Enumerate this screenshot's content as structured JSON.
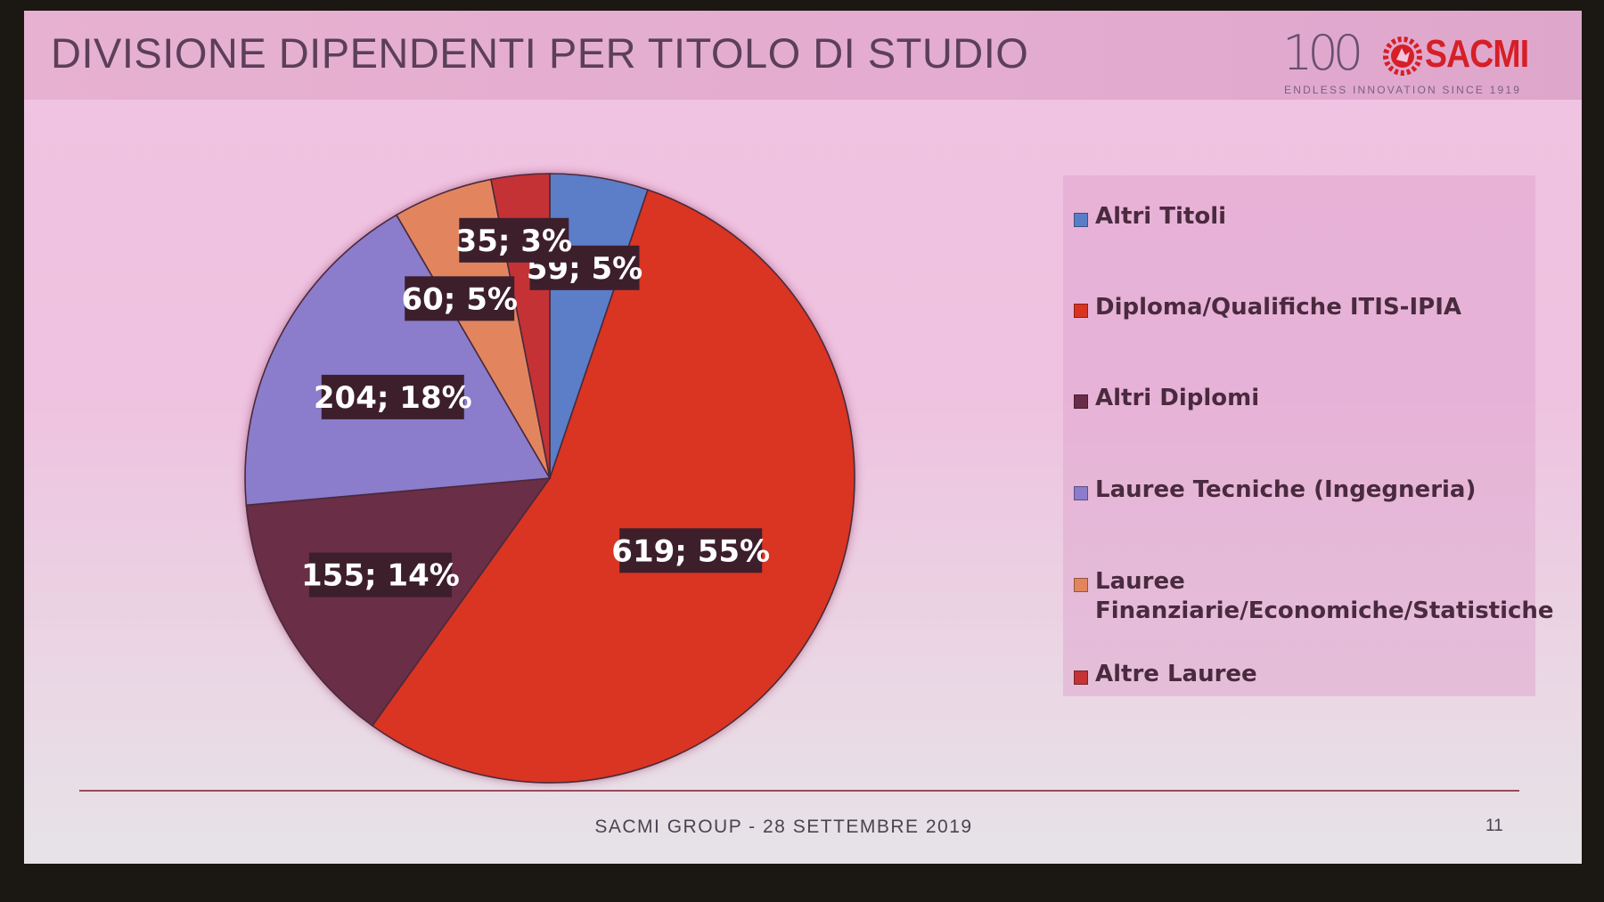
{
  "slide": {
    "title": "DIVISIONE DIPENDENTI PER TITOLO DI STUDIO",
    "logo": {
      "mark": "100",
      "brand": "SACMI",
      "tagline": "ENDLESS INNOVATION SINCE 1919"
    },
    "footer": "SACMI GROUP - 28 SETTEMBRE 2019",
    "page_number": "11"
  },
  "chart_data": {
    "type": "pie",
    "title": "",
    "start_angle_deg": 0,
    "direction": "clockwise",
    "legend_position": "right",
    "categories": [
      "Altri Titoli",
      "Diploma/Qualifiche ITIS-IPIA",
      "Altri Diplomi",
      "Lauree Tecniche (Ingegneria)",
      "Lauree Finanziarie/Economiche/Statistiche",
      "Altre Lauree"
    ],
    "values": [
      59,
      619,
      155,
      204,
      60,
      35
    ],
    "percentages": [
      5,
      55,
      14,
      18,
      5,
      3
    ],
    "labels": [
      "59; 5%",
      "619; 55%",
      "155; 14%",
      "204; 18%",
      "60; 5%",
      "35; 3%"
    ],
    "colors": [
      "#5b7dc8",
      "#d93420",
      "#6a2d47",
      "#8b7ccc",
      "#e2855e",
      "#c43336"
    ],
    "legend_lines": [
      [
        "Altri Titoli"
      ],
      [
        "Diploma/Qualifiche ITIS-IPIA"
      ],
      [
        "Altri Diplomi"
      ],
      [
        "Lauree Tecniche (Ingegneria)"
      ],
      [
        "Lauree",
        "Finanziarie/Economiche/Statistiche"
      ],
      [
        "Altre Lauree"
      ]
    ]
  }
}
